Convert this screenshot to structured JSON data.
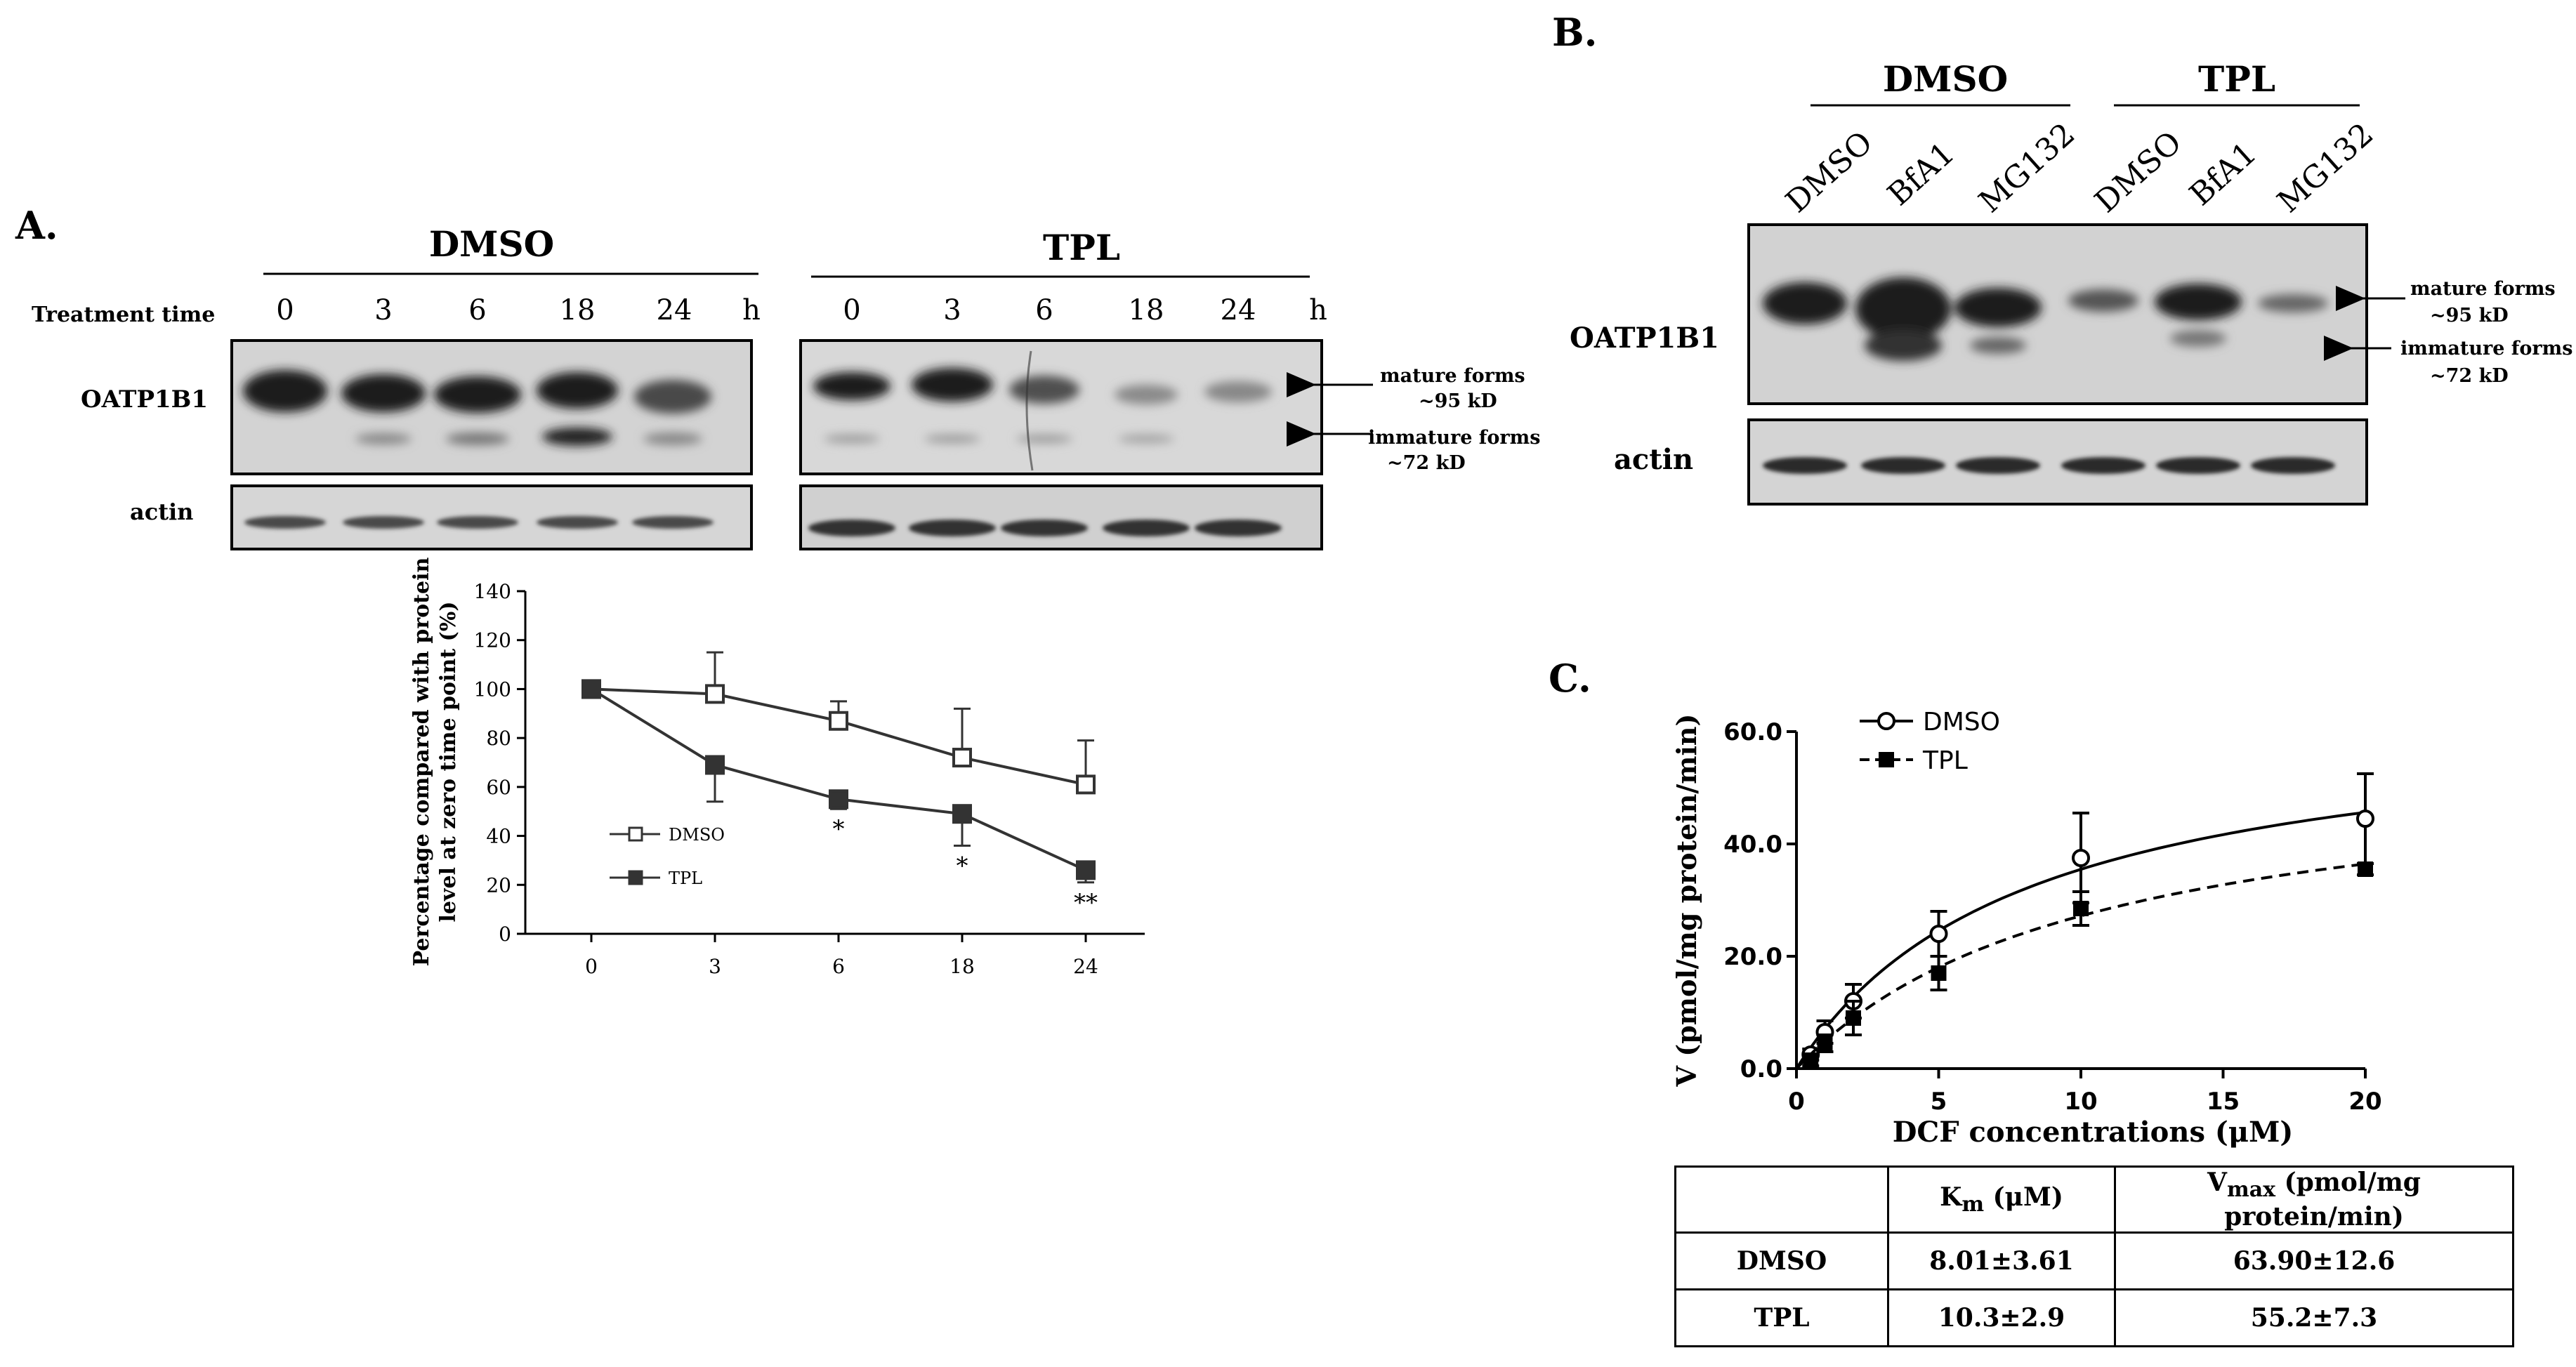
{
  "panel_a": {
    "label": "A.",
    "treatment_time_label": "Treatment  time",
    "dmso_header": "DMSO",
    "tpl_header": "TPL",
    "time_points": [
      "0",
      "3",
      "6",
      "18",
      "24"
    ],
    "time_unit": "h",
    "oatp_label": "OATP1B1",
    "actin_label": "actin",
    "mature_label_1": "mature forms",
    "mature_label_2": "~95 kD",
    "immature_label_1": "immature forms",
    "immature_label_2": "~72 kD"
  },
  "panel_b": {
    "label": "B.",
    "dmso_header": "DMSO",
    "tpl_header": "TPL",
    "lanes": [
      "DMSO",
      "BfA1",
      "MG132",
      "DMSO",
      "BfA1",
      "MG132"
    ],
    "oatp_label": "OATP1B1",
    "actin_label": "actin",
    "mature_label_1": "mature forms",
    "mature_label_2": "~95 kD",
    "immature_label_1": "immature forms",
    "immature_label_2": "~72 kD"
  },
  "panel_c": {
    "label": "C."
  },
  "chart_data": [
    {
      "type": "line",
      "panel": "A",
      "categories": [
        "0",
        "3",
        "6",
        "18",
        "24"
      ],
      "ylabel": "Percentage compared with protein level at zero time point (%)",
      "ylabel_line1": "Percentage  compared  with  protein",
      "ylabel_line2": "level at zero time point (%)",
      "xlabel": "",
      "ylim": [
        0,
        140
      ],
      "yticks": [
        "0",
        "20",
        "40",
        "60",
        "80",
        "100",
        "120",
        "140"
      ],
      "series": [
        {
          "name": "DMSO",
          "values": [
            100,
            98,
            87,
            72,
            61
          ],
          "errors": [
            0,
            17,
            8,
            20,
            18
          ],
          "marker": "open-square"
        },
        {
          "name": "TPL",
          "values": [
            100,
            69,
            55,
            49,
            26
          ],
          "errors": [
            0,
            15,
            4,
            13,
            5
          ],
          "marker": "filled-square"
        }
      ],
      "annotations": [
        {
          "category": "6",
          "text": "*"
        },
        {
          "category": "18",
          "text": "*"
        },
        {
          "category": "24",
          "text": "**"
        }
      ],
      "legend_placement": "center-left"
    },
    {
      "type": "scatter",
      "panel": "C",
      "xlabel": "DCF concentrations  (μM)",
      "ylabel": "V (pmol/mg  protein/min)",
      "xlim": [
        0,
        20
      ],
      "ylim": [
        0,
        60
      ],
      "xticks": [
        "0",
        "5",
        "10",
        "15",
        "20"
      ],
      "yticks": [
        "0.0",
        "20.0",
        "40.0",
        "60.0"
      ],
      "series": [
        {
          "name": "DMSO",
          "x": [
            0.5,
            1,
            2,
            5,
            10,
            20
          ],
          "y": [
            2.5,
            6.5,
            12,
            24,
            37.5,
            44.5
          ],
          "errors": [
            1,
            2,
            3,
            4,
            8,
            8
          ],
          "marker": "open-circle",
          "fit": "solid",
          "fit_km": 8.01,
          "fit_vmax": 63.9
        },
        {
          "name": "TPL",
          "x": [
            0.5,
            1,
            2,
            5,
            10,
            20
          ],
          "y": [
            1.5,
            4.5,
            9,
            17,
            28.5,
            35.5
          ],
          "errors": [
            1,
            1.5,
            3,
            3,
            3,
            1
          ],
          "marker": "filled-square",
          "fit": "dashed",
          "fit_km": 10.3,
          "fit_vmax": 55.2
        }
      ],
      "legend_placement": "top-left"
    },
    {
      "type": "table",
      "panel": "C",
      "headers": [
        "",
        "Km (μM)",
        "Vmax (pmol/mg  protein/min)"
      ],
      "header_km_main": "K",
      "header_km_sub": "m",
      "header_km_rest": " (μM)",
      "header_vmax_main": "V",
      "header_vmax_sub": "max",
      "header_vmax_rest": " (pmol/mg  protein/min)",
      "rows": [
        [
          "DMSO",
          "8.01±3.61",
          "63.90±12.6"
        ],
        [
          "TPL",
          "10.3±2.9",
          "55.2±7.3"
        ]
      ]
    }
  ]
}
